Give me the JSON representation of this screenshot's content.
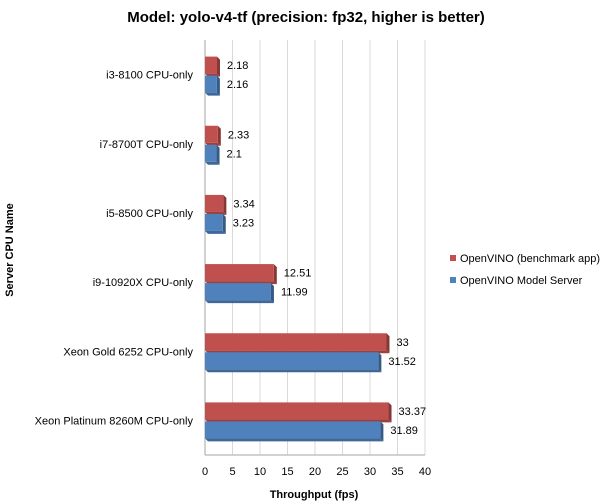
{
  "chart_data": {
    "type": "bar",
    "orientation": "horizontal",
    "title": "Model: yolo-v4-tf (precision: fp32, higher is better)",
    "xlabel": "Throughput (fps)",
    "ylabel": "Server CPU Name",
    "xlim": [
      0,
      40
    ],
    "xticks": [
      0,
      5,
      10,
      15,
      20,
      25,
      30,
      35,
      40
    ],
    "grid": true,
    "legend_position": "right",
    "categories": [
      "i3-8100 CPU-only",
      "i7-8700T CPU-only",
      "i5-8500 CPU-only",
      "i9-10920X CPU-only",
      "Xeon Gold 6252 CPU-only",
      "Xeon Platinum 8260M CPU-only"
    ],
    "series": [
      {
        "name": "OpenVINO (benchmark app)",
        "color": "#C0504D",
        "values": [
          2.18,
          2.33,
          3.34,
          12.51,
          33,
          33.37
        ],
        "labels": [
          "2.18",
          "2.33",
          "3.34",
          "12.51",
          "33",
          "33.37"
        ]
      },
      {
        "name": "OpenVINO Model Server",
        "color": "#4F81BD",
        "values": [
          2.16,
          2.1,
          3.23,
          11.99,
          31.52,
          31.89
        ],
        "labels": [
          "2.16",
          "2.1",
          "3.23",
          "11.99",
          "31.52",
          "31.89"
        ]
      }
    ]
  }
}
